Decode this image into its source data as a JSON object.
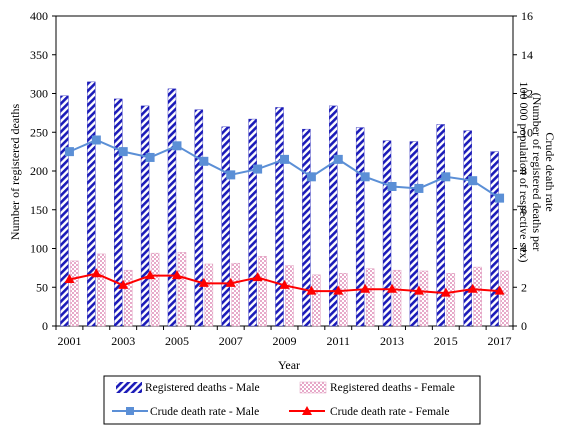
{
  "chart_data": {
    "type": "bar",
    "xlabel": "Year",
    "ylabel": "Number of registered deaths",
    "y2label": [
      "Crude death rate",
      "(Number of registered deaths per",
      "100 000 population of respective sex)"
    ],
    "ylim": [
      0,
      400
    ],
    "y2lim": [
      0,
      16
    ],
    "y_ticks": [
      "0",
      "50",
      "100",
      "150",
      "200",
      "250",
      "300",
      "350",
      "400"
    ],
    "y2_ticks": [
      "0",
      "2",
      "4",
      "6",
      "8",
      "10",
      "12",
      "14",
      "16"
    ],
    "categories": [
      "2001",
      "2002",
      "2003",
      "2004",
      "2005",
      "2006",
      "2007",
      "2008",
      "2009",
      "2010",
      "2011",
      "2012",
      "2013",
      "2014",
      "2015",
      "2016",
      "2017"
    ],
    "x_tick_labels": [
      "2001",
      "",
      "2003",
      "",
      "2005",
      "",
      "2007",
      "",
      "2009",
      "",
      "2011",
      "",
      "2013",
      "",
      "2015",
      "",
      "2017"
    ],
    "grid": false,
    "legend_position": "bottom",
    "series": [
      {
        "name": "Registered deaths - Male",
        "kind": "bar",
        "axis": "left",
        "pattern": "blue-diagonal-stripes",
        "color": "#1b1bb8",
        "values": [
          297,
          315,
          293,
          284,
          306,
          279,
          257,
          267,
          282,
          254,
          284,
          256,
          239,
          238,
          260,
          252,
          225
        ]
      },
      {
        "name": "Registered deaths - Female",
        "kind": "bar",
        "axis": "left",
        "pattern": "pink-checker",
        "color": "#e0a0c0",
        "values": [
          84,
          93,
          72,
          94,
          95,
          80,
          81,
          90,
          78,
          66,
          68,
          74,
          72,
          71,
          68,
          76,
          71
        ]
      },
      {
        "name": "Crude death rate - Male",
        "kind": "line",
        "axis": "right",
        "marker": "square",
        "color": "#5b8fd6",
        "values": [
          9.0,
          9.6,
          9.0,
          8.7,
          9.3,
          8.5,
          7.8,
          8.1,
          8.6,
          7.7,
          8.6,
          7.7,
          7.2,
          7.1,
          7.7,
          7.5,
          6.6
        ]
      },
      {
        "name": "Crude death rate - Female",
        "kind": "line",
        "axis": "right",
        "marker": "triangle",
        "color": "#ff0000",
        "values": [
          2.4,
          2.7,
          2.1,
          2.6,
          2.6,
          2.2,
          2.2,
          2.5,
          2.1,
          1.8,
          1.8,
          1.9,
          1.9,
          1.8,
          1.7,
          1.9,
          1.8
        ]
      }
    ]
  }
}
